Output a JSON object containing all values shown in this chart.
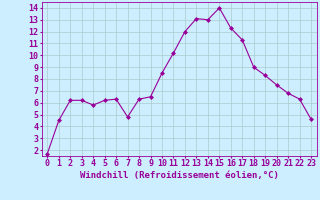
{
  "x": [
    0,
    1,
    2,
    3,
    4,
    5,
    6,
    7,
    8,
    9,
    10,
    11,
    12,
    13,
    14,
    15,
    16,
    17,
    18,
    19,
    20,
    21,
    22,
    23
  ],
  "y": [
    1.7,
    4.5,
    6.2,
    6.2,
    5.8,
    6.2,
    6.3,
    4.8,
    6.3,
    6.5,
    8.5,
    10.2,
    12.0,
    13.1,
    13.0,
    14.0,
    12.3,
    11.3,
    9.0,
    8.3,
    7.5,
    6.8,
    6.3,
    4.6
  ],
  "line_color": "#990099",
  "marker": "D",
  "marker_size": 2,
  "bg_color": "#cceeff",
  "grid_color": "#aacccc",
  "xlabel": "Windchill (Refroidissement éolien,°C)",
  "xlim": [
    -0.5,
    23.5
  ],
  "ylim": [
    1.5,
    14.5
  ],
  "yticks": [
    2,
    3,
    4,
    5,
    6,
    7,
    8,
    9,
    10,
    11,
    12,
    13,
    14
  ],
  "xticks": [
    0,
    1,
    2,
    3,
    4,
    5,
    6,
    7,
    8,
    9,
    10,
    11,
    12,
    13,
    14,
    15,
    16,
    17,
    18,
    19,
    20,
    21,
    22,
    23
  ],
  "tick_label_color": "#990099",
  "axis_color": "#990099",
  "label_fontsize": 6.5,
  "tick_fontsize": 6.0,
  "ylabel_fontsize": 6.0
}
